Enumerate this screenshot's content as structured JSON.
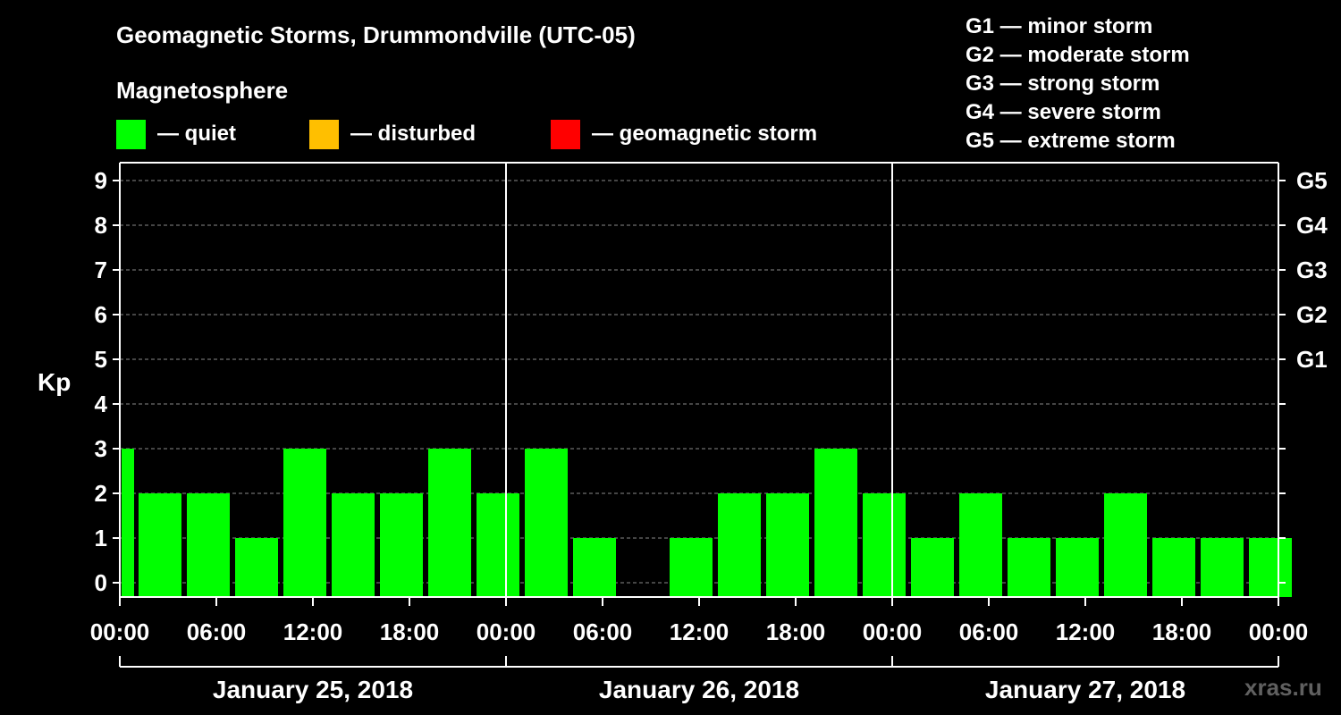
{
  "header": {
    "title": "Geomagnetic Storms, Drummondville (UTC-05)",
    "subtitle": "Magnetosphere"
  },
  "legend": [
    {
      "label": "— quiet",
      "color": "#00ff00"
    },
    {
      "label": "— disturbed",
      "color": "#ffbf00"
    },
    {
      "label": "— geomagnetic storm",
      "color": "#ff0000"
    }
  ],
  "storm_scale": [
    "G1 — minor storm",
    "G2 — moderate storm",
    "G3 — strong storm",
    "G4 — severe storm",
    "G5 — extreme storm"
  ],
  "watermark": "xras.ru",
  "chart_data": {
    "type": "bar",
    "ylabel": "Kp",
    "ylim": [
      0,
      9
    ],
    "yticks": [
      "0",
      "1",
      "2",
      "3",
      "4",
      "5",
      "6",
      "7",
      "8",
      "9"
    ],
    "right_ticks": [
      {
        "kp": 5,
        "label": "G1"
      },
      {
        "kp": 6,
        "label": "G2"
      },
      {
        "kp": 7,
        "label": "G3"
      },
      {
        "kp": 8,
        "label": "G4"
      },
      {
        "kp": 9,
        "label": "G5"
      }
    ],
    "grid": true,
    "xtick_labels": [
      "00:00",
      "06:00",
      "12:00",
      "18:00",
      "00:00",
      "06:00",
      "12:00",
      "18:00",
      "00:00",
      "06:00",
      "12:00",
      "18:00",
      "00:00"
    ],
    "days": [
      "January 25, 2018",
      "January 26, 2018",
      "January 27, 2018"
    ],
    "start_hours": [
      0,
      1,
      4,
      7,
      10,
      13,
      16,
      19,
      22,
      25,
      28,
      31,
      34,
      37,
      40,
      43,
      46,
      49,
      52,
      55,
      58,
      61,
      64,
      67,
      70
    ],
    "values": [
      3,
      2,
      2,
      1,
      3,
      2,
      2,
      3,
      2,
      3,
      1,
      0,
      1,
      2,
      2,
      3,
      2,
      1,
      2,
      1,
      1,
      2,
      1,
      1,
      1
    ],
    "colors": [
      "#00ff00",
      "#00ff00",
      "#00ff00",
      "#00ff00",
      "#00ff00",
      "#00ff00",
      "#00ff00",
      "#00ff00",
      "#00ff00",
      "#00ff00",
      "#00ff00",
      "#00ff00",
      "#00ff00",
      "#00ff00",
      "#00ff00",
      "#00ff00",
      "#00ff00",
      "#00ff00",
      "#00ff00",
      "#00ff00",
      "#00ff00",
      "#00ff00",
      "#00ff00",
      "#00ff00",
      "#00ff00"
    ]
  }
}
